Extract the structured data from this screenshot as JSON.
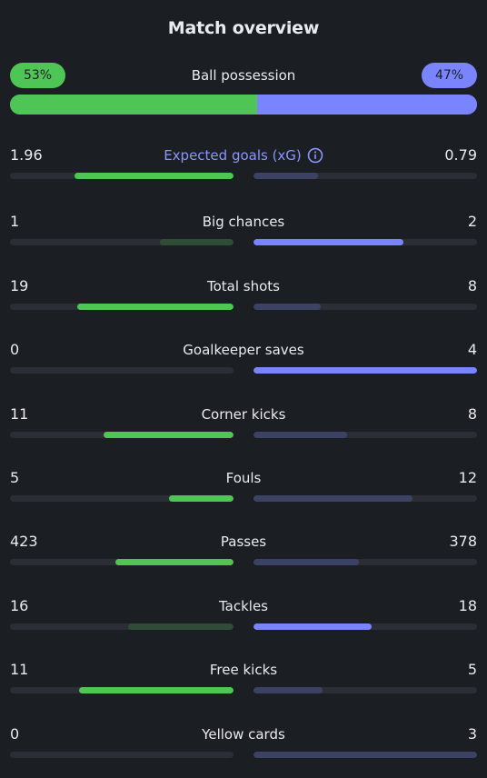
{
  "title": "Match overview",
  "possession": {
    "label": "Ball possession",
    "home_text": "53%",
    "away_text": "47%",
    "home": 53,
    "away": 47
  },
  "colors": {
    "home_win": "#4fc556",
    "home_lose": "#2f4c36",
    "away_win": "#7a84ff",
    "away_lose": "#3c4264",
    "track": "#2b2f35",
    "background": "#1b1e22",
    "accent_label": "#8c95ff"
  },
  "stats": [
    {
      "label": "Expected goals (xG)",
      "home": "1.96",
      "away": "0.79",
      "home_fill": 0.71,
      "away_fill": 0.29,
      "winner": "home",
      "info_icon": "info-icon"
    },
    {
      "label": "Big chances",
      "home": "1",
      "away": "2",
      "home_fill": 0.33,
      "away_fill": 0.67,
      "winner": "away"
    },
    {
      "label": "Total shots",
      "home": "19",
      "away": "8",
      "home_fill": 0.7,
      "away_fill": 0.3,
      "winner": "home"
    },
    {
      "label": "Goalkeeper saves",
      "home": "0",
      "away": "4",
      "home_fill": 0.0,
      "away_fill": 1.0,
      "winner": "away"
    },
    {
      "label": "Corner kicks",
      "home": "11",
      "away": "8",
      "home_fill": 0.58,
      "away_fill": 0.42,
      "winner": "home"
    },
    {
      "label": "Fouls",
      "home": "5",
      "away": "12",
      "home_fill": 0.29,
      "away_fill": 0.71,
      "winner": "home"
    },
    {
      "label": "Passes",
      "home": "423",
      "away": "378",
      "home_fill": 0.53,
      "away_fill": 0.47,
      "winner": "home"
    },
    {
      "label": "Tackles",
      "home": "16",
      "away": "18",
      "home_fill": 0.47,
      "away_fill": 0.53,
      "winner": "away"
    },
    {
      "label": "Free kicks",
      "home": "11",
      "away": "5",
      "home_fill": 0.69,
      "away_fill": 0.31,
      "winner": "home"
    },
    {
      "label": "Yellow cards",
      "home": "0",
      "away": "3",
      "home_fill": 0.0,
      "away_fill": 1.0,
      "winner": "home"
    }
  ]
}
